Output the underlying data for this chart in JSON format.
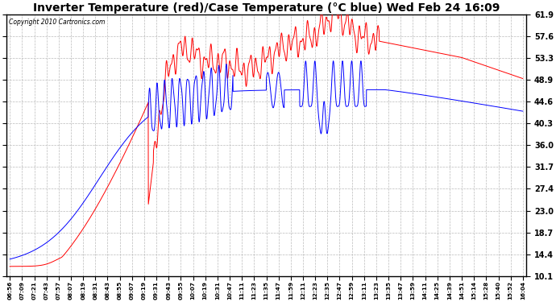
{
  "title": "Inverter Temperature (red)/Case Temperature (°C blue) Wed Feb 24 16:09",
  "copyright": "Copyright 2010 Cartronics.com",
  "yticks": [
    10.1,
    14.4,
    18.7,
    23.0,
    27.4,
    31.7,
    36.0,
    40.3,
    44.6,
    48.9,
    53.3,
    57.6,
    61.9
  ],
  "ylim": [
    10.1,
    61.9
  ],
  "title_fontsize": 10,
  "bg_color": "#ffffff",
  "plot_bg": "#ffffff",
  "grid_color": "#bbbbbb",
  "red_color": "#ff0000",
  "blue_color": "#0000ff",
  "xtick_labels": [
    "06:56",
    "07:09",
    "07:21",
    "07:43",
    "07:57",
    "08:07",
    "08:19",
    "08:31",
    "08:43",
    "08:55",
    "09:07",
    "09:19",
    "09:31",
    "09:43",
    "09:55",
    "10:07",
    "10:19",
    "10:31",
    "10:47",
    "11:11",
    "11:23",
    "11:35",
    "11:47",
    "11:59",
    "12:11",
    "12:23",
    "12:35",
    "12:47",
    "12:59",
    "13:11",
    "13:23",
    "13:35",
    "13:47",
    "13:59",
    "14:11",
    "14:25",
    "14:39",
    "14:51",
    "15:14",
    "15:28",
    "15:40",
    "15:52",
    "16:04"
  ]
}
